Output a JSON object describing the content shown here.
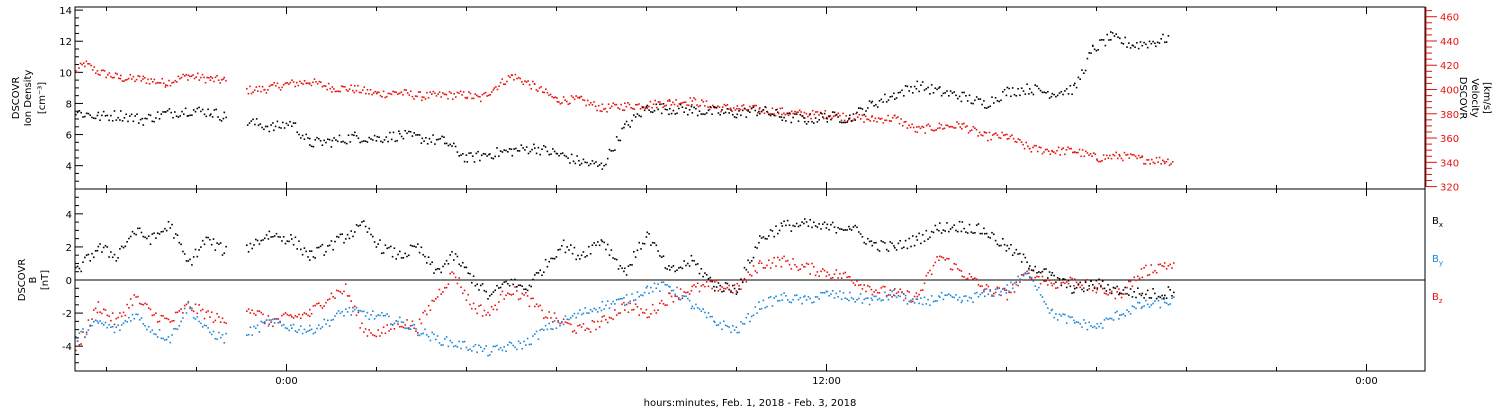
{
  "xlabel": "hours:minutes, Feb.  1, 2018 - Feb.  3, 2018",
  "x_ticks": [
    "0:00",
    "12:00",
    "0:00"
  ],
  "colors": {
    "black": "#000000",
    "red": "#e8130f",
    "blue": "#1f86d6"
  },
  "chart_data": [
    {
      "type": "scatter",
      "panel": "top",
      "ylabel_left": [
        "DSCOVR",
        "Ion Density",
        "[cm⁻³]"
      ],
      "ylabel_right": [
        "DSCOVR",
        "Velocity",
        "[km/s]"
      ],
      "x_range_hours": [
        -4.7,
        25.3
      ],
      "left_axis": {
        "ticks": [
          4,
          6,
          8,
          10,
          12,
          14
        ],
        "ylim": [
          2.5,
          14.2
        ]
      },
      "right_axis": {
        "ticks": [
          320,
          340,
          360,
          380,
          400,
          420,
          440,
          460
        ],
        "ylim": [
          318,
          468
        ]
      },
      "series": [
        {
          "name": "Ion Density",
          "axis": "left",
          "color": "#000000",
          "x_hours": [
            -4.7,
            -4.2,
            -3.7,
            -3.2,
            -2.7,
            -2.2,
            -1.7,
            -1.4,
            -0.3,
            0.1,
            0.5,
            1.0,
            1.5,
            2.0,
            2.5,
            3.0,
            3.5,
            4.0,
            4.5,
            5.0,
            5.5,
            6.0,
            6.5,
            7.0,
            7.5,
            8.0,
            8.5,
            9.0,
            9.5,
            10.0,
            10.5,
            11.0,
            11.5,
            12.0,
            12.5,
            13.0,
            13.5,
            14.0,
            14.5,
            15.0,
            15.5,
            16.0,
            16.5,
            17.0,
            17.5,
            17.9,
            18.3,
            18.8,
            19.3,
            19.6
          ],
          "values": [
            7.5,
            7.2,
            7.3,
            7.0,
            7.4,
            7.6,
            7.5,
            7.2,
            6.5,
            6.8,
            5.5,
            5.6,
            5.9,
            5.8,
            6.0,
            5.8,
            5.6,
            4.5,
            4.8,
            5.0,
            5.2,
            4.8,
            4.3,
            4.0,
            6.5,
            7.8,
            7.7,
            7.6,
            7.5,
            7.4,
            7.6,
            7.2,
            7.0,
            7.2,
            7.1,
            8.0,
            8.6,
            9.2,
            8.8,
            8.5,
            8.0,
            8.8,
            9.0,
            8.7,
            9.0,
            11.5,
            12.3,
            11.8,
            12.0,
            12.3
          ]
        },
        {
          "name": "Velocity",
          "axis": "right",
          "color": "#e8130f",
          "x_hours": [
            -4.7,
            -4.5,
            -4.2,
            -3.7,
            -3.2,
            -2.7,
            -2.2,
            -1.7,
            -1.4,
            -0.9,
            -0.5,
            0.0,
            0.5,
            1.0,
            1.5,
            2.0,
            2.5,
            3.0,
            3.5,
            4.0,
            4.3,
            4.6,
            5.0,
            5.5,
            6.0,
            6.5,
            7.0,
            7.5,
            8.0,
            8.5,
            9.0,
            9.5,
            10.0,
            10.5,
            11.0,
            11.5,
            12.0,
            12.5,
            13.0,
            13.5,
            14.0,
            14.5,
            15.0,
            15.5,
            16.0,
            16.5,
            17.0,
            17.5,
            18.0,
            18.5,
            19.0,
            19.5,
            19.7
          ],
          "values": [
            415,
            422,
            415,
            410,
            409,
            406,
            412,
            409,
            408,
            400,
            401,
            405,
            407,
            402,
            401,
            397,
            398,
            395,
            396,
            396,
            393,
            402,
            412,
            403,
            392,
            392,
            385,
            387,
            388,
            390,
            391,
            386,
            385,
            384,
            382,
            380,
            380,
            378,
            376,
            377,
            367,
            370,
            371,
            362,
            362,
            352,
            350,
            350,
            344,
            346,
            343,
            342,
            341
          ]
        }
      ]
    },
    {
      "type": "scatter",
      "panel": "bottom",
      "ylabel_left": [
        "DSCOVR",
        "B",
        "[nT]"
      ],
      "x_range_hours": [
        -4.7,
        25.3
      ],
      "ylim": [
        -5.5,
        5.5
      ],
      "ticks": [
        -4,
        -2,
        0,
        2,
        4
      ],
      "series": [
        {
          "name": "Bx",
          "color": "#000000",
          "x_hours": [
            -4.7,
            -4.2,
            -3.8,
            -3.4,
            -3.0,
            -2.6,
            -2.2,
            -1.8,
            -1.4,
            -1.2,
            -0.9,
            -0.4,
            0.1,
            0.5,
            0.9,
            1.3,
            1.7,
            2.1,
            2.5,
            2.9,
            3.3,
            3.7,
            4.1,
            4.5,
            4.9,
            5.3,
            5.7,
            6.1,
            6.5,
            7.0,
            7.5,
            8.0,
            8.5,
            9.0,
            9.5,
            10.0,
            10.5,
            11.0,
            11.5,
            12.0,
            12.5,
            13.0,
            13.5,
            14.0,
            14.5,
            15.0,
            15.5,
            16.0,
            16.5,
            17.0,
            17.5,
            18.0,
            18.5,
            19.0,
            19.5,
            19.7
          ],
          "values": [
            0.5,
            2.0,
            1.5,
            3.0,
            2.5,
            3.4,
            1.0,
            2.5,
            1.8,
            1.5,
            2.0,
            2.8,
            2.5,
            1.5,
            2.0,
            2.7,
            3.3,
            2.0,
            1.5,
            2.0,
            0.5,
            1.5,
            0.2,
            -1.0,
            0.0,
            -0.5,
            0.8,
            2.2,
            1.5,
            2.5,
            0.5,
            2.8,
            0.5,
            1.2,
            -0.3,
            -0.5,
            2.5,
            3.3,
            3.4,
            3.2,
            3.3,
            2.2,
            2.0,
            2.5,
            3.2,
            3.3,
            3.0,
            2.0,
            1.0,
            0.2,
            -0.5,
            -0.2,
            -0.6,
            -0.8,
            -0.8,
            -0.5
          ]
        },
        {
          "name": "By",
          "color": "#1f86d6",
          "x_hours": [
            -4.7,
            -4.2,
            -3.8,
            -3.4,
            -3.0,
            -2.6,
            -2.2,
            -1.8,
            -1.4,
            -1.2,
            -0.9,
            -0.4,
            0.1,
            0.5,
            0.9,
            1.3,
            1.7,
            2.1,
            2.5,
            2.9,
            3.3,
            3.7,
            4.1,
            4.5,
            4.9,
            5.3,
            5.7,
            6.1,
            6.5,
            7.0,
            7.5,
            8.0,
            8.5,
            9.0,
            9.5,
            10.0,
            10.5,
            11.0,
            11.5,
            12.0,
            12.5,
            13.0,
            13.5,
            14.0,
            14.5,
            15.0,
            15.5,
            16.0,
            16.5,
            17.0,
            17.5,
            18.0,
            18.5,
            19.0,
            19.5,
            19.7
          ],
          "values": [
            -3.5,
            -2.5,
            -3.0,
            -2.0,
            -3.0,
            -3.5,
            -1.5,
            -3.0,
            -3.5,
            -3.0,
            -3.2,
            -2.5,
            -2.8,
            -3.0,
            -2.5,
            -1.8,
            -2.0,
            -2.2,
            -2.5,
            -3.0,
            -3.5,
            -3.8,
            -4.0,
            -4.3,
            -4.0,
            -3.8,
            -3.0,
            -2.5,
            -2.0,
            -1.5,
            -1.2,
            -0.5,
            -0.3,
            -1.5,
            -2.5,
            -3.0,
            -1.5,
            -1.0,
            -1.2,
            -0.8,
            -1.0,
            -1.2,
            -0.8,
            -1.4,
            -1.0,
            -1.2,
            -0.8,
            -0.5,
            0.5,
            -2.0,
            -2.5,
            -2.8,
            -2.0,
            -1.5,
            -1.3,
            -1.2
          ]
        },
        {
          "name": "Bz",
          "color": "#e8130f",
          "x_hours": [
            -4.7,
            -4.2,
            -3.8,
            -3.4,
            -3.0,
            -2.6,
            -2.2,
            -1.8,
            -1.4,
            -1.2,
            -0.9,
            -0.4,
            0.1,
            0.5,
            0.9,
            1.3,
            1.7,
            2.1,
            2.5,
            2.9,
            3.3,
            3.7,
            4.1,
            4.5,
            4.9,
            5.3,
            5.7,
            6.1,
            6.5,
            7.0,
            7.5,
            8.0,
            8.5,
            9.0,
            9.5,
            10.0,
            10.5,
            11.0,
            11.5,
            12.0,
            12.5,
            13.0,
            13.5,
            14.0,
            14.5,
            15.0,
            15.5,
            16.0,
            16.5,
            17.0,
            17.5,
            18.0,
            18.5,
            19.0,
            19.5,
            19.7
          ],
          "values": [
            -4.2,
            -1.5,
            -2.5,
            -1.0,
            -2.0,
            -2.5,
            -1.5,
            -2.0,
            -2.5,
            -2.0,
            -1.5,
            -2.5,
            -2.2,
            -2.0,
            -1.0,
            -0.5,
            -3.0,
            -3.2,
            -2.5,
            -2.8,
            -1.0,
            0.5,
            -1.5,
            -2.0,
            -0.5,
            -1.0,
            -2.0,
            -2.5,
            -3.0,
            -2.5,
            -1.5,
            -2.0,
            -1.0,
            -0.5,
            -0.3,
            -0.5,
            1.0,
            1.2,
            0.8,
            0.5,
            0.2,
            -0.5,
            -0.8,
            -1.0,
            1.5,
            0.5,
            -0.5,
            -0.8,
            0.5,
            -0.2,
            0.0,
            -0.5,
            -0.8,
            0.5,
            1.0,
            0.8
          ]
        }
      ]
    }
  ]
}
